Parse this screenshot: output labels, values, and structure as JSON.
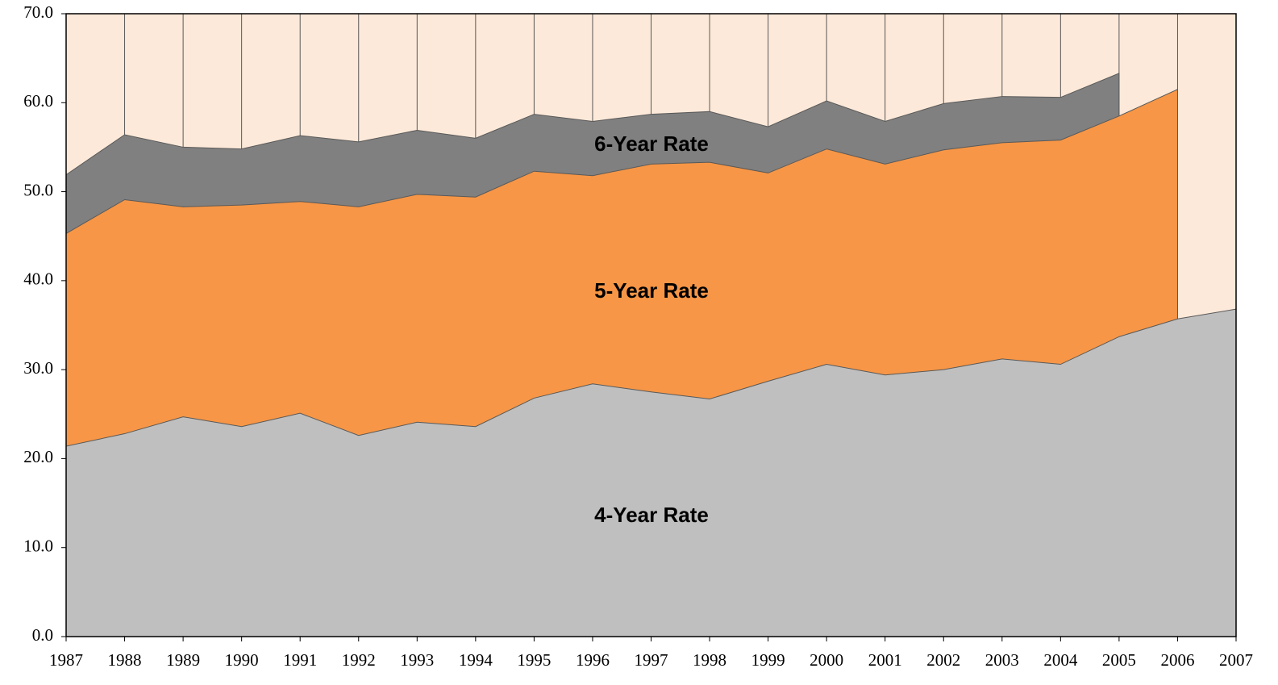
{
  "chart_data": {
    "type": "area",
    "x": [
      1987,
      1988,
      1989,
      1990,
      1991,
      1992,
      1993,
      1994,
      1995,
      1996,
      1997,
      1998,
      1999,
      2000,
      2001,
      2002,
      2003,
      2004,
      2005,
      2006,
      2007
    ],
    "series": [
      {
        "name": "6-Year Rate",
        "color": "#808080",
        "values": [
          51.9,
          56.4,
          55.0,
          54.8,
          56.3,
          55.6,
          56.9,
          56.0,
          58.7,
          57.9,
          58.7,
          59.0,
          57.3,
          60.2,
          57.9,
          59.9,
          60.7,
          60.6,
          63.3,
          null,
          null
        ]
      },
      {
        "name": "5-Year Rate",
        "color": "#f79646",
        "values": [
          45.3,
          49.1,
          48.3,
          48.5,
          48.9,
          48.3,
          49.7,
          49.4,
          52.3,
          51.8,
          53.1,
          53.3,
          52.1,
          54.8,
          53.1,
          54.7,
          55.5,
          55.8,
          58.5,
          61.5,
          null
        ]
      },
      {
        "name": "4-Year Rate",
        "color": "#bfbfbf",
        "values": [
          21.4,
          22.8,
          24.7,
          23.6,
          25.1,
          22.6,
          24.1,
          23.6,
          26.8,
          28.4,
          27.5,
          26.7,
          28.7,
          30.6,
          29.4,
          30.0,
          31.2,
          30.6,
          33.7,
          35.7,
          36.8
        ]
      }
    ],
    "xlim": [
      1987,
      2007
    ],
    "xticks": [
      1987,
      1988,
      1989,
      1990,
      1991,
      1992,
      1993,
      1994,
      1995,
      1996,
      1997,
      1998,
      1999,
      2000,
      2001,
      2002,
      2003,
      2004,
      2005,
      2006,
      2007
    ],
    "ylim": [
      0,
      70
    ],
    "yticks": [
      {
        "value": 0,
        "label": "0.0"
      },
      {
        "value": 10,
        "label": "10.0"
      },
      {
        "value": 20,
        "label": "20.0"
      },
      {
        "value": 30,
        "label": "30.0"
      },
      {
        "value": 40,
        "label": "40.0"
      },
      {
        "value": 50,
        "label": "50.0"
      },
      {
        "value": 60,
        "label": "60.0"
      },
      {
        "value": 70,
        "label": "70.0"
      }
    ],
    "plot_background": "#fde9d9",
    "grid": true
  }
}
